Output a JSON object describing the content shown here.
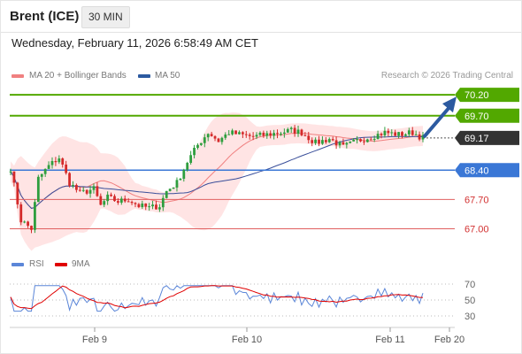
{
  "header": {
    "instrument": "Brent (ICE)",
    "timeframe": "30 MIN"
  },
  "datetime": "Wednesday, February 11, 2026 6:58:49 AM CET",
  "legend": {
    "ma20": {
      "label": "MA 20 + Bollinger Bands",
      "color": "#f08080"
    },
    "ma50": {
      "label": "MA 50",
      "color": "#2c5aa0"
    }
  },
  "credit": "Research © 2026 Trading Central",
  "rsi_legend": {
    "rsi": {
      "label": "RSI",
      "color": "#5b86d8"
    },
    "ma9": {
      "label": "9MA",
      "color": "#e00000"
    }
  },
  "levels": [
    {
      "label": "70.20",
      "value": 70.2,
      "style": "green-box"
    },
    {
      "label": "69.70",
      "value": 69.7,
      "style": "green-box"
    },
    {
      "label": "69.17",
      "value": 69.17,
      "style": "dark-box"
    },
    {
      "label": "68.40",
      "value": 68.4,
      "style": "blue-box"
    },
    {
      "label": "67.70",
      "value": 67.7,
      "style": "red-text"
    },
    {
      "label": "67.00",
      "value": 67.0,
      "style": "red-text"
    }
  ],
  "rsi_scale": [
    {
      "label": "70",
      "value": 70
    },
    {
      "label": "50",
      "value": 50
    },
    {
      "label": "30",
      "value": 30
    }
  ],
  "x_axis": [
    "Feb 9",
    "Feb 10",
    "Feb 11",
    "Feb 20"
  ],
  "colors": {
    "up": "#2e9e3e",
    "down": "#d42a2a",
    "green": "#52a800",
    "blue": "#3a77d6",
    "red": "#e06060",
    "dark": "#333333",
    "arrow": "#2c5aa0",
    "band": "#ffd9d9"
  }
}
